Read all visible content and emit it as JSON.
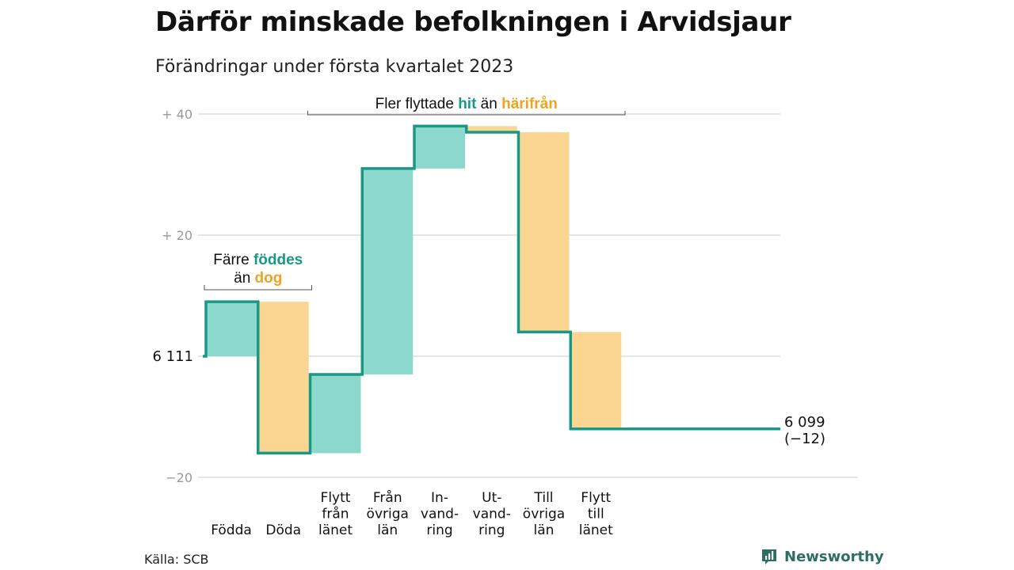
{
  "header": {
    "title": "Därför minskade befolkningen i Arvidsjaur",
    "subtitle": "Förändringar under första kvartalet 2023"
  },
  "footer": {
    "source": "Källa: SCB",
    "brand": "Newsworthy",
    "brand_icon": "bar-chart-speech-icon"
  },
  "colors": {
    "increase": "#8dd8cd",
    "decrease": "#fbd692",
    "line": "#1a9886",
    "teal_text": "#1a9886",
    "orange_text": "#eea323",
    "grid": "#dddddd",
    "tick_text": "#999999",
    "brand": "#2d6e60"
  },
  "chart_data": {
    "type": "waterfall",
    "title": "Därför minskade befolkningen i Arvidsjaur",
    "subtitle": "Förändringar under första kvartalet 2023",
    "start": {
      "label": "6 111",
      "value": 0
    },
    "end": {
      "label": "6 099",
      "change_label": "(−12)",
      "value": -12
    },
    "y_ticks": [
      {
        "value": 40,
        "label": "+ 40"
      },
      {
        "value": 20,
        "label": "+ 20"
      },
      {
        "value": 0,
        "label": ""
      },
      {
        "value": -20,
        "label": "−20"
      }
    ],
    "ylim": [
      -20,
      40
    ],
    "grid": true,
    "steps": [
      {
        "lines": [
          "Födda"
        ],
        "delta": 9,
        "kind": "in"
      },
      {
        "lines": [
          "Döda"
        ],
        "delta": -25,
        "kind": "out"
      },
      {
        "lines": [
          "Flytt",
          "från",
          "länet"
        ],
        "delta": 13,
        "kind": "in"
      },
      {
        "lines": [
          "Från",
          "övriga",
          "län"
        ],
        "delta": 34,
        "kind": "in"
      },
      {
        "lines": [
          "In-",
          "vand-",
          "ring"
        ],
        "delta": 7,
        "kind": "in"
      },
      {
        "lines": [
          "Ut-",
          "vand-",
          "ring"
        ],
        "delta": -1,
        "kind": "out"
      },
      {
        "lines": [
          "Till",
          "övriga",
          "län"
        ],
        "delta": -33,
        "kind": "out"
      },
      {
        "lines": [
          "Flytt",
          "till",
          "länet"
        ],
        "delta": -16,
        "kind": "out"
      }
    ],
    "annotations": [
      {
        "parts": [
          [
            "Färre ",
            "plain"
          ],
          [
            "föddes",
            "teal"
          ]
        ],
        "parts2": [
          [
            "än ",
            "plain"
          ],
          [
            "dog",
            "orange"
          ]
        ],
        "from_step": 0,
        "to_step": 1
      },
      {
        "parts": [
          [
            "Fler flyttade ",
            "plain"
          ],
          [
            "hit",
            "teal"
          ],
          [
            " än ",
            "plain"
          ],
          [
            "härifrån",
            "orange"
          ]
        ],
        "from_step": 2,
        "to_step": 7
      }
    ]
  }
}
